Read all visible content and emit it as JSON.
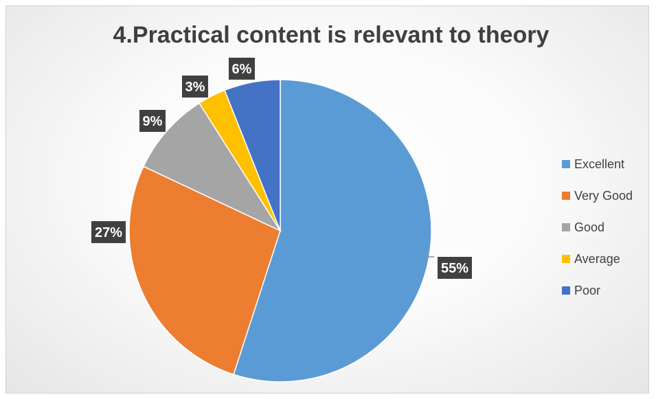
{
  "chart_data": {
    "type": "pie",
    "title": "4.Practical content is relevant to theory",
    "categories": [
      "Excellent",
      "Very Good",
      "Good",
      "Average",
      "Poor"
    ],
    "values": [
      55,
      27,
      9,
      3,
      6
    ],
    "labels": [
      "55%",
      "27%",
      "9%",
      "3%",
      "6%"
    ],
    "colors": [
      "#5B9BD5",
      "#ED7D31",
      "#A5A5A5",
      "#FFC000",
      "#4472C4"
    ],
    "label_background": "#404040",
    "legend_position": "right",
    "start": "12 o'clock",
    "direction": "clockwise"
  }
}
